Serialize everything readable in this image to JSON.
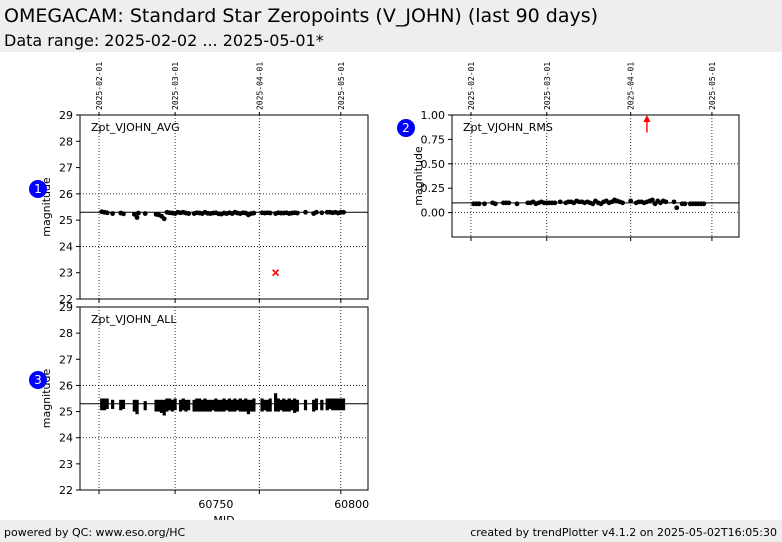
{
  "header": {
    "title": "OMEGACAM: Standard Star Zeropoints (V_JOHN) (last 90 days)",
    "subtitle": "Data range: 2025-02-02 ... 2025-05-01*"
  },
  "footer": {
    "left": "powered by QC: www.eso.org/HC",
    "right": "created by trendPlotter v4.1.2 on 2025-05-02T16:05:30"
  },
  "colors": {
    "marker": "#000000",
    "outlier": "#ff0000",
    "badge": "#0000ff",
    "header_bg": "#eeeeee"
  },
  "chart_data": [
    {
      "id": 1,
      "type": "scatter",
      "badge": "1",
      "panel_label": "Zpt_VJOHN_AVG",
      "ylabel": "magnitude",
      "xlabel": "",
      "xlim": [
        60700,
        60806
      ],
      "ylim": [
        22,
        29
      ],
      "yticks": [
        "22",
        "23",
        "24",
        "25",
        "26",
        "27",
        "28",
        "29"
      ],
      "xticks": [],
      "date_ticks": [
        "2025-02-01",
        "2025-03-01",
        "2025-04-01",
        "2025-05-01"
      ],
      "date_tick_mjd": [
        60707,
        60735,
        60766,
        60796
      ],
      "reference_lines": [
        {
          "axis": "y",
          "value": 25.3
        }
      ],
      "grid_y": [
        24,
        26
      ],
      "series": [
        {
          "values": [
            [
              60708,
              25.32
            ],
            [
              60709,
              25.3
            ],
            [
              60710,
              25.28
            ],
            [
              60712,
              25.25
            ],
            [
              60715,
              25.27
            ],
            [
              60716,
              25.24
            ],
            [
              60720,
              25.22
            ],
            [
              60721,
              25.1
            ],
            [
              60721.5,
              25.27
            ],
            [
              60724,
              25.25
            ],
            [
              60728,
              25.22
            ],
            [
              60729,
              25.2
            ],
            [
              60730,
              25.15
            ],
            [
              60731,
              25.05
            ],
            [
              60732,
              25.3
            ],
            [
              60733,
              25.28
            ],
            [
              60734,
              25.27
            ],
            [
              60735,
              25.25
            ],
            [
              60736,
              25.3
            ],
            [
              60737,
              25.28
            ],
            [
              60738,
              25.3
            ],
            [
              60739,
              25.27
            ],
            [
              60740,
              25.25
            ],
            [
              60742,
              25.25
            ],
            [
              60743,
              25.28
            ],
            [
              60744,
              25.27
            ],
            [
              60745,
              25.25
            ],
            [
              60746,
              25.3
            ],
            [
              60747,
              25.26
            ],
            [
              60748,
              25.25
            ],
            [
              60749,
              25.27
            ],
            [
              60750,
              25.28
            ],
            [
              60751,
              25.24
            ],
            [
              60752,
              25.23
            ],
            [
              60753,
              25.27
            ],
            [
              60754,
              25.25
            ],
            [
              60755,
              25.28
            ],
            [
              60756,
              25.25
            ],
            [
              60757,
              25.3
            ],
            [
              60758,
              25.27
            ],
            [
              60759,
              25.25
            ],
            [
              60760,
              25.28
            ],
            [
              60761,
              25.27
            ],
            [
              60762,
              25.2
            ],
            [
              60763,
              25.25
            ],
            [
              60764,
              25.27
            ],
            [
              60767,
              25.28
            ],
            [
              60768,
              25.27
            ],
            [
              60769,
              25.28
            ],
            [
              60770,
              25.27
            ],
            [
              60772,
              25.25
            ],
            [
              60773,
              25.28
            ],
            [
              60774,
              25.27
            ],
            [
              60775,
              25.27
            ],
            [
              60776,
              25.28
            ],
            [
              60777,
              25.25
            ],
            [
              60778,
              25.27
            ],
            [
              60779,
              25.28
            ],
            [
              60780,
              25.27
            ],
            [
              60783,
              25.3
            ],
            [
              60786,
              25.25
            ],
            [
              60787,
              25.3
            ],
            [
              60789,
              25.28
            ],
            [
              60791,
              25.3
            ],
            [
              60792,
              25.3
            ],
            [
              60793,
              25.28
            ],
            [
              60794,
              25.3
            ],
            [
              60795,
              25.27
            ],
            [
              60796,
              25.3
            ],
            [
              60797,
              25.3
            ]
          ]
        },
        {
          "values": [
            [
              60772,
              23.0
            ]
          ],
          "marker": "x",
          "color": "#ff0000"
        }
      ]
    },
    {
      "id": 2,
      "type": "scatter",
      "badge": "2",
      "panel_label": "Zpt_VJOHN_RMS",
      "ylabel": "magnitude",
      "xlabel": "",
      "xlim": [
        60700,
        60806
      ],
      "ylim": [
        -0.25,
        1.0
      ],
      "yticks": [
        "0.00",
        "0.25",
        "0.50",
        "0.75",
        "1.00"
      ],
      "ytick_values": [
        0,
        0.25,
        0.5,
        0.75,
        1.0
      ],
      "xticks": [],
      "date_ticks": [
        "2025-02-01",
        "2025-03-01",
        "2025-04-01",
        "2025-05-01"
      ],
      "date_tick_mjd": [
        60707,
        60735,
        60766,
        60796
      ],
      "reference_lines": [
        {
          "axis": "y",
          "value": 0.1
        }
      ],
      "grid_y": [
        0,
        0.5
      ],
      "series": [
        {
          "values": [
            [
              60708,
              0.09
            ],
            [
              60709,
              0.09
            ],
            [
              60710,
              0.09
            ],
            [
              60712,
              0.09
            ],
            [
              60715,
              0.1
            ],
            [
              60716,
              0.09
            ],
            [
              60719,
              0.1
            ],
            [
              60720,
              0.1
            ],
            [
              60721,
              0.1
            ],
            [
              60724,
              0.09
            ],
            [
              60728,
              0.1
            ],
            [
              60729,
              0.1
            ],
            [
              60730,
              0.11
            ],
            [
              60731,
              0.09
            ],
            [
              60732,
              0.1
            ],
            [
              60733,
              0.11
            ],
            [
              60734,
              0.1
            ],
            [
              60735,
              0.1
            ],
            [
              60736,
              0.1
            ],
            [
              60737,
              0.1
            ],
            [
              60738,
              0.1
            ],
            [
              60740,
              0.11
            ],
            [
              60742,
              0.1
            ],
            [
              60743,
              0.11
            ],
            [
              60744,
              0.11
            ],
            [
              60745,
              0.1
            ],
            [
              60746,
              0.12
            ],
            [
              60747,
              0.11
            ],
            [
              60748,
              0.11
            ],
            [
              60749,
              0.1
            ],
            [
              60750,
              0.11
            ],
            [
              60751,
              0.1
            ],
            [
              60752,
              0.09
            ],
            [
              60753,
              0.12
            ],
            [
              60754,
              0.1
            ],
            [
              60755,
              0.09
            ],
            [
              60756,
              0.11
            ],
            [
              60757,
              0.12
            ],
            [
              60758,
              0.1
            ],
            [
              60759,
              0.11
            ],
            [
              60760,
              0.13
            ],
            [
              60761,
              0.12
            ],
            [
              60762,
              0.11
            ],
            [
              60763,
              0.1
            ],
            [
              60766,
              0.12
            ],
            [
              60768,
              0.1
            ],
            [
              60769,
              0.11
            ],
            [
              60770,
              0.11
            ],
            [
              60771,
              0.1
            ],
            [
              60772,
              0.11
            ],
            [
              60773,
              0.12
            ],
            [
              60774,
              0.13
            ],
            [
              60775,
              0.09
            ],
            [
              60776,
              0.12
            ],
            [
              60777,
              0.1
            ],
            [
              60778,
              0.12
            ],
            [
              60779,
              0.11
            ],
            [
              60782,
              0.11
            ],
            [
              60783,
              0.05
            ],
            [
              60785,
              0.09
            ],
            [
              60786,
              0.09
            ],
            [
              60788,
              0.09
            ],
            [
              60789,
              0.09
            ],
            [
              60790,
              0.09
            ],
            [
              60791,
              0.09
            ],
            [
              60792,
              0.09
            ],
            [
              60793,
              0.09
            ]
          ]
        }
      ],
      "outlier_arrows": [
        {
          "x": 60772,
          "from": 0.82,
          "to": 1.0,
          "color": "#ff0000"
        }
      ]
    },
    {
      "id": 3,
      "type": "scatter",
      "badge": "3",
      "panel_label": "Zpt_VJOHN_ALL",
      "ylabel": "magnitude",
      "xlabel": "MJD",
      "xlim": [
        60700,
        60806
      ],
      "ylim": [
        22,
        29
      ],
      "yticks": [
        "22",
        "23",
        "24",
        "25",
        "26",
        "27",
        "28",
        "29"
      ],
      "xticks": [
        "60750",
        "60800"
      ],
      "xtick_values": [
        60750,
        60800
      ],
      "date_tick_mjd": [
        60707,
        60735,
        60766,
        60796
      ],
      "reference_lines": [
        {
          "axis": "y",
          "value": 25.3
        }
      ],
      "grid_y": [
        24,
        26
      ],
      "series": [
        {
          "name": "",
          "columns": [
            [
              60708,
              25.05,
              25.5
            ],
            [
              60709,
              25.05,
              25.5
            ],
            [
              60710,
              25.1,
              25.5
            ],
            [
              60712,
              25.1,
              25.45
            ],
            [
              60715,
              25.05,
              25.45
            ],
            [
              60716,
              25.1,
              25.45
            ],
            [
              60720,
              25.0,
              25.45
            ],
            [
              60721,
              24.9,
              25.45
            ],
            [
              60724,
              25.05,
              25.4
            ],
            [
              60728,
              25.0,
              25.45
            ],
            [
              60729,
              25.0,
              25.45
            ],
            [
              60730,
              24.95,
              25.45
            ],
            [
              60731,
              24.85,
              25.45
            ],
            [
              60732,
              25.0,
              25.5
            ],
            [
              60733,
              25.05,
              25.5
            ],
            [
              60734,
              25.0,
              25.45
            ],
            [
              60735,
              25.05,
              25.5
            ],
            [
              60737,
              25.0,
              25.45
            ],
            [
              60738,
              25.05,
              25.5
            ],
            [
              60739,
              25.0,
              25.45
            ],
            [
              60740,
              25.05,
              25.45
            ],
            [
              60742,
              25.0,
              25.45
            ],
            [
              60743,
              25.0,
              25.5
            ],
            [
              60744,
              25.0,
              25.5
            ],
            [
              60745,
              25.0,
              25.45
            ],
            [
              60746,
              25.0,
              25.5
            ],
            [
              60747,
              25.0,
              25.45
            ],
            [
              60748,
              25.0,
              25.45
            ],
            [
              60749,
              25.05,
              25.45
            ],
            [
              60750,
              25.0,
              25.5
            ],
            [
              60751,
              25.0,
              25.45
            ],
            [
              60752,
              25.0,
              25.45
            ],
            [
              60753,
              25.0,
              25.5
            ],
            [
              60754,
              25.05,
              25.45
            ],
            [
              60755,
              25.0,
              25.5
            ],
            [
              60756,
              25.0,
              25.45
            ],
            [
              60757,
              25.0,
              25.5
            ],
            [
              60758,
              25.05,
              25.45
            ],
            [
              60759,
              25.0,
              25.5
            ],
            [
              60760,
              25.0,
              25.45
            ],
            [
              60761,
              25.0,
              25.5
            ],
            [
              60762,
              24.9,
              25.45
            ],
            [
              60763,
              25.0,
              25.45
            ],
            [
              60764,
              25.0,
              25.5
            ],
            [
              60767,
              25.0,
              25.5
            ],
            [
              60768,
              25.05,
              25.45
            ],
            [
              60769,
              25.0,
              25.45
            ],
            [
              60770,
              25.0,
              25.5
            ],
            [
              60772,
              25.0,
              25.7
            ],
            [
              60773,
              25.0,
              25.5
            ],
            [
              60774,
              25.05,
              25.45
            ],
            [
              60775,
              25.0,
              25.5
            ],
            [
              60776,
              25.0,
              25.45
            ],
            [
              60777,
              25.0,
              25.5
            ],
            [
              60778,
              25.05,
              25.45
            ],
            [
              60779,
              24.95,
              25.5
            ],
            [
              60780,
              25.0,
              25.45
            ],
            [
              60783,
              25.05,
              25.45
            ],
            [
              60786,
              25.0,
              25.45
            ],
            [
              60787,
              25.05,
              25.5
            ],
            [
              60789,
              25.05,
              25.45
            ],
            [
              60791,
              25.05,
              25.5
            ],
            [
              60792,
              25.1,
              25.5
            ],
            [
              60793,
              25.05,
              25.5
            ],
            [
              60794,
              25.05,
              25.5
            ],
            [
              60795,
              25.05,
              25.5
            ],
            [
              60796,
              25.05,
              25.5
            ],
            [
              60797,
              25.05,
              25.5
            ]
          ]
        }
      ]
    }
  ]
}
